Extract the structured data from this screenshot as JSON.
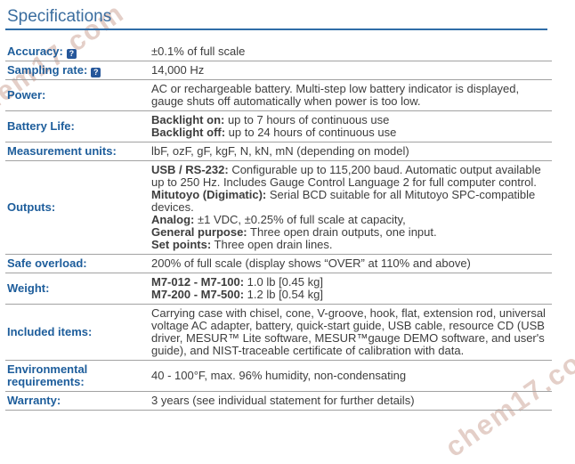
{
  "page": {
    "title": "Specifications"
  },
  "watermark": {
    "text": "chem17.com",
    "color": "#cfa99c"
  },
  "colors": {
    "title_blue": "#3a6d9f",
    "rule_blue": "#2f6da8",
    "label_blue": "#1d5d9b",
    "help_icon_blue": "#26579a",
    "body_text": "#3d3d3d",
    "divider_gray": "#a2a2a2"
  },
  "table": {
    "help_icon": "?",
    "rows": [
      {
        "label": "Accuracy:",
        "help": true,
        "paragraphs": [
          {
            "bold": "",
            "text": "±0.1% of full scale"
          }
        ]
      },
      {
        "label": "Sampling rate:",
        "help": true,
        "paragraphs": [
          {
            "bold": "",
            "text": "14,000 Hz"
          }
        ]
      },
      {
        "label": "Power:",
        "help": false,
        "paragraphs": [
          {
            "bold": "",
            "text": "AC or rechargeable battery. Multi-step low battery indicator is displayed, gauge shuts off automatically when power is too low."
          }
        ]
      },
      {
        "label": "Battery Life:",
        "help": false,
        "paragraphs": [
          {
            "bold": "Backlight on:",
            "text": " up to 7 hours of continuous use"
          },
          {
            "bold": "Backlight off:",
            "text": " up to 24 hours of continuous use"
          }
        ]
      },
      {
        "label": "Measurement units:",
        "help": false,
        "paragraphs": [
          {
            "bold": "",
            "text": "lbF, ozF, gF, kgF, N, kN, mN (depending on model)"
          }
        ]
      },
      {
        "label": "Outputs:",
        "help": false,
        "paragraphs": [
          {
            "bold": "USB / RS-232:",
            "text": " Configurable up to 115,200 baud. Automatic output available up to 250 Hz. Includes Gauge Control Language 2 for full computer control."
          },
          {
            "bold": "Mitutoyo (Digimatic):",
            "text": " Serial BCD suitable for all Mitutoyo SPC-compatible devices."
          },
          {
            "bold": "Analog:",
            "text": " ±1 VDC, ±0.25% of full scale at capacity,"
          },
          {
            "bold": "General purpose:",
            "text": " Three open drain outputs, one input."
          },
          {
            "bold": "Set points:",
            "text": " Three open drain lines."
          }
        ]
      },
      {
        "label": "Safe overload:",
        "help": false,
        "paragraphs": [
          {
            "bold": "",
            "text": "200% of full scale (display shows “OVER” at 110% and above)"
          }
        ]
      },
      {
        "label": "Weight:",
        "help": false,
        "paragraphs": [
          {
            "bold": "M7-012 - M7-100:",
            "text": " 1.0 lb [0.45 kg]"
          },
          {
            "bold": "M7-200 - M7-500:",
            "text": " 1.2 lb [0.54 kg]"
          }
        ]
      },
      {
        "label": "Included items:",
        "help": false,
        "paragraphs": [
          {
            "bold": "",
            "text": "Carrying case with chisel, cone, V-groove, hook, flat, extension rod, universal voltage AC adapter, battery, quick-start guide, USB cable, resource CD (USB driver, MESUR™ Lite software, MESUR™gauge DEMO software, and user's guide), and NIST-traceable certificate of calibration with data."
          }
        ]
      },
      {
        "label": "Environmental requirements:",
        "help": false,
        "paragraphs": [
          {
            "bold": "",
            "text": "40 - 100°F, max. 96% humidity, non-condensating"
          }
        ]
      },
      {
        "label": "Warranty:",
        "help": false,
        "paragraphs": [
          {
            "bold": "",
            "text": "3 years (see individual statement for further details)"
          }
        ]
      }
    ]
  }
}
